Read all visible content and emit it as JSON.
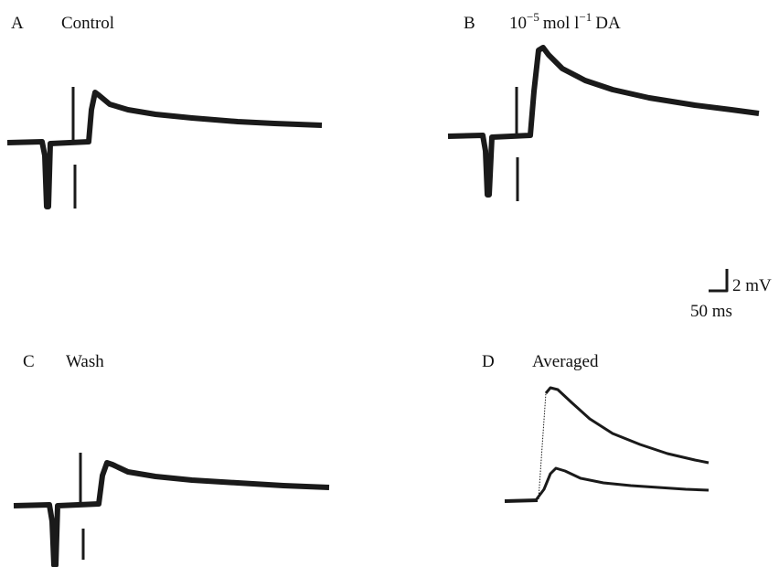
{
  "panels": [
    {
      "letter": "A",
      "label": "Control"
    },
    {
      "letter": "B",
      "label_parts": [
        "10",
        "−5",
        "mol l",
        "−1",
        "DA"
      ]
    },
    {
      "letter": "C",
      "label": "Wash"
    },
    {
      "letter": "D",
      "label": "Averaged"
    }
  ],
  "scale_bar": {
    "vertical": "2 mV",
    "horizontal": "50 ms"
  }
}
